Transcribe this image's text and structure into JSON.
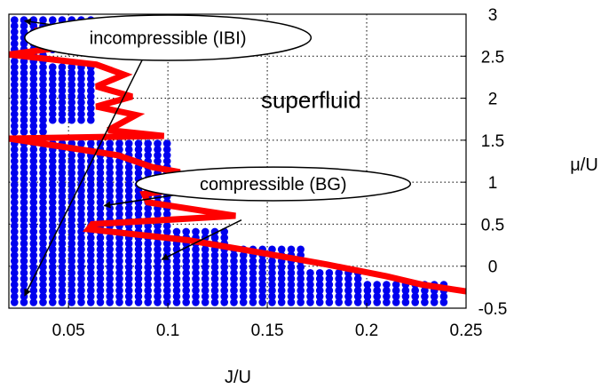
{
  "chart_data": {
    "type": "scatter",
    "xlabel": "J/U",
    "ylabel": "μ/U",
    "xlim": [
      0.02,
      0.25
    ],
    "ylim": [
      -0.5,
      3.0
    ],
    "xticks": [
      "0.05",
      "0.1",
      "0.15",
      "0.2",
      "0.25"
    ],
    "yticks": [
      "-0.5",
      "0",
      "0.5",
      "1",
      "1.5",
      "2",
      "2.5",
      "3"
    ],
    "grid": true,
    "point_color": "#0000ee",
    "line_color": "#ff0000",
    "point_step_x": 0.0048,
    "point_step_y": 0.07,
    "boundary": [
      [
        0.068,
        2.92
      ],
      [
        0.033,
        2.8
      ],
      [
        0.07,
        2.68
      ],
      [
        0.02,
        2.52
      ],
      [
        0.064,
        2.4
      ],
      [
        0.078,
        2.28
      ],
      [
        0.064,
        2.14
      ],
      [
        0.082,
        2.02
      ],
      [
        0.064,
        1.9
      ],
      [
        0.084,
        1.8
      ],
      [
        0.07,
        1.62
      ],
      [
        0.098,
        1.55
      ],
      [
        0.02,
        1.52
      ],
      [
        0.075,
        1.32
      ],
      [
        0.092,
        1.18
      ],
      [
        0.106,
        1.12
      ],
      [
        0.09,
        0.98
      ],
      [
        0.108,
        0.92
      ],
      [
        0.088,
        0.86
      ],
      [
        0.09,
        0.76
      ],
      [
        0.134,
        0.6
      ],
      [
        0.062,
        0.5
      ],
      [
        0.06,
        0.44
      ],
      [
        0.11,
        0.31
      ],
      [
        0.142,
        0.18
      ],
      [
        0.18,
        0.02
      ],
      [
        0.21,
        -0.12
      ],
      [
        0.228,
        -0.22
      ],
      [
        0.25,
        -0.3
      ]
    ],
    "regions": [
      {
        "x0": 0.02,
        "x1": 0.065,
        "y0": 2.55,
        "y1": 2.95
      },
      {
        "x0": 0.02,
        "x1": 0.04,
        "y0": 1.55,
        "y1": 2.55
      },
      {
        "x0": 0.04,
        "x1": 0.062,
        "y0": 1.7,
        "y1": 2.4
      },
      {
        "x0": 0.02,
        "x1": 0.1,
        "y0": 0.45,
        "y1": 1.5
      },
      {
        "x0": 0.02,
        "x1": 0.13,
        "y0": -0.45,
        "y1": 0.45
      },
      {
        "x0": 0.12,
        "x1": 0.17,
        "y0": -0.45,
        "y1": 0.2
      },
      {
        "x0": 0.17,
        "x1": 0.2,
        "y0": -0.45,
        "y1": -0.05
      },
      {
        "x0": 0.2,
        "x1": 0.24,
        "y0": -0.45,
        "y1": -0.2
      }
    ],
    "annotations": [
      {
        "text": "incompressible (IBI)",
        "x": 0.1,
        "y": 2.72,
        "rx": 0.072,
        "ry": 0.27
      },
      {
        "text": "compressible (BG)",
        "x": 0.153,
        "y": 0.98,
        "rx": 0.069,
        "ry": 0.2
      },
      {
        "text": "superfluid",
        "x": 0.172,
        "y": 1.98
      }
    ],
    "arrows": [
      {
        "from": [
          0.07,
          2.78
        ],
        "to": [
          0.028,
          2.92
        ]
      },
      {
        "from": [
          0.088,
          2.5
        ],
        "to": [
          0.028,
          -0.35
        ]
      },
      {
        "from": [
          0.107,
          0.86
        ],
        "to": [
          0.068,
          0.72
        ]
      },
      {
        "from": [
          0.137,
          0.55
        ],
        "to": [
          0.097,
          0.08
        ]
      }
    ]
  }
}
